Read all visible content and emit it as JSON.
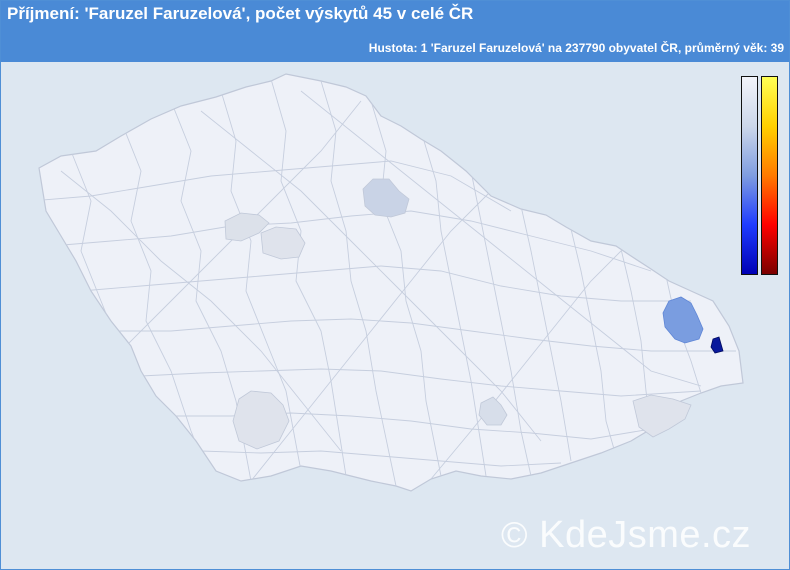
{
  "header": {
    "title": "Příjmení: 'Faruzel Faruzelová', počet výskytů 45 v celé ČR",
    "subtitle": "Hustota: 1 'Faruzel Faruzelová' na 237790 obyvatel ČR, průměrný věk: 39"
  },
  "map": {
    "region": "Czech Republic districts",
    "colors": {
      "background": "#dde7f1",
      "base": "#eef1f8",
      "light": "#d7deea",
      "medium": "#c9d3e6",
      "strong": "#7a9de0",
      "darkest": "#0a1a9c",
      "border": "#c0c8d8"
    },
    "highlighted": [
      {
        "name": "northeast-bohemia-district",
        "level": 0.15
      },
      {
        "name": "west-bohemia-district",
        "level": 0.08
      },
      {
        "name": "central-west-district",
        "level": 0.1
      },
      {
        "name": "south-bohemia-district",
        "level": 0.08
      },
      {
        "name": "south-moravia-district",
        "level": 0.1
      },
      {
        "name": "zlin-district",
        "level": 0.08
      },
      {
        "name": "ostrava-district",
        "level": 0.55
      },
      {
        "name": "karvina-district",
        "level": 1.0
      }
    ]
  },
  "legend": {
    "scale_low_to_high": [
      "#f2f4fa",
      "#0000b5"
    ],
    "heat_scale_top_to_bottom": [
      "#ffff55",
      "#7a0000"
    ]
  },
  "watermark": {
    "symbol": "©",
    "text": "KdeJsme.cz"
  }
}
